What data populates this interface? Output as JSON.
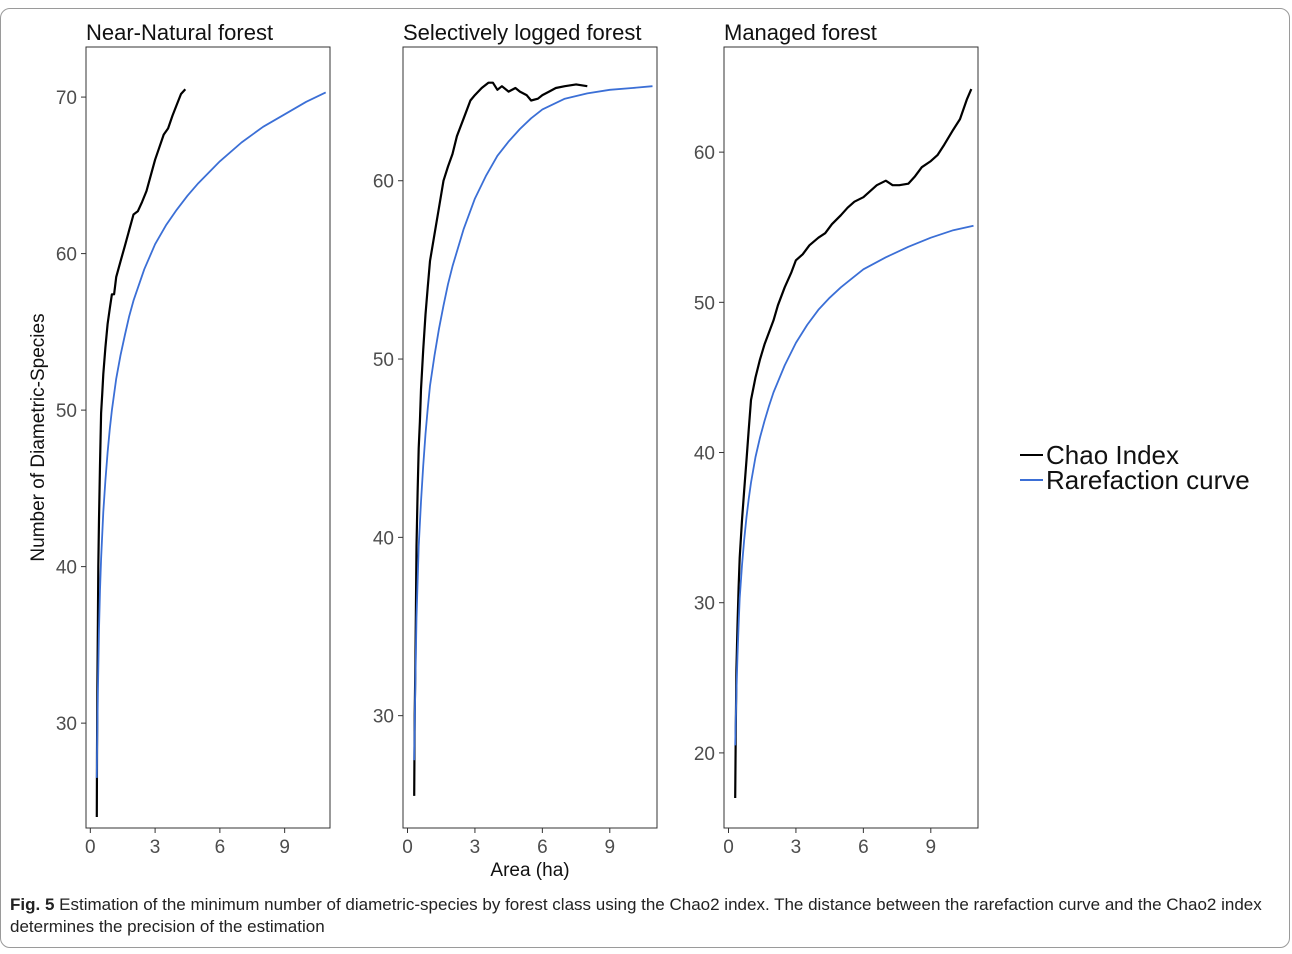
{
  "chart_data": [
    {
      "type": "line",
      "title": "Near-Natural forest",
      "xlabel": "",
      "ylabel": "Number of Diametric-Species",
      "xlim": [
        -0.2,
        11.1
      ],
      "ylim": [
        23.3,
        73.2
      ],
      "xticks": [
        0,
        3,
        6,
        9
      ],
      "yticks": [
        30,
        40,
        50,
        60,
        70
      ],
      "grid": false,
      "series": [
        {
          "name": "Chao Index",
          "color": "#000000",
          "x": [
            0.3,
            0.31,
            0.33,
            0.35,
            0.37,
            0.4,
            0.45,
            0.5,
            0.55,
            0.6,
            0.7,
            0.8,
            0.9,
            1.0,
            1.1,
            1.2,
            1.4,
            1.6,
            1.8,
            2.0,
            2.2,
            2.4,
            2.6,
            2.8,
            3.0,
            3.2,
            3.4,
            3.6,
            3.8,
            4.0,
            4.2,
            4.4
          ],
          "y": [
            24,
            28,
            32.5,
            36.5,
            40,
            43,
            46.5,
            49.8,
            51,
            52.3,
            54,
            55.5,
            56.5,
            57.4,
            57.4,
            58.5,
            59.5,
            60.5,
            61.5,
            62.5,
            62.7,
            63.3,
            64,
            65,
            66,
            66.8,
            67.6,
            68,
            68.8,
            69.5,
            70.2,
            70.5
          ]
        },
        {
          "name": "Rarefaction curve",
          "color": "#3b6fd6",
          "x": [
            0.3,
            0.32,
            0.35,
            0.4,
            0.45,
            0.5,
            0.6,
            0.7,
            0.8,
            0.9,
            1.0,
            1.2,
            1.4,
            1.6,
            1.8,
            2.0,
            2.5,
            3.0,
            3.5,
            4.0,
            4.5,
            5.0,
            6.0,
            7.0,
            8.0,
            9.0,
            10.0,
            10.9
          ],
          "y": [
            26.5,
            29,
            32,
            36,
            38.5,
            40.5,
            43.5,
            45.5,
            47.3,
            48.8,
            50,
            52,
            53.5,
            54.8,
            56,
            57,
            59,
            60.6,
            61.8,
            62.8,
            63.7,
            64.5,
            65.9,
            67.1,
            68.1,
            68.9,
            69.7,
            70.3
          ]
        }
      ]
    },
    {
      "type": "line",
      "title": "Selectively logged forest",
      "xlabel": "Area (ha)",
      "ylabel": "",
      "xlim": [
        -0.2,
        11.1
      ],
      "ylim": [
        23.7,
        67.5
      ],
      "xticks": [
        0,
        3,
        6,
        9
      ],
      "yticks": [
        30,
        40,
        50,
        60
      ],
      "grid": false,
      "series": [
        {
          "name": "Chao Index",
          "color": "#000000",
          "x": [
            0.3,
            0.32,
            0.35,
            0.38,
            0.4,
            0.45,
            0.5,
            0.55,
            0.6,
            0.7,
            0.8,
            0.9,
            1.0,
            1.2,
            1.4,
            1.6,
            1.8,
            2.0,
            2.2,
            2.5,
            2.8,
            3.0,
            3.3,
            3.6,
            3.8,
            4.0,
            4.2,
            4.5,
            4.8,
            5.0,
            5.3,
            5.5,
            5.8,
            6.0,
            6.3,
            6.6,
            7.0,
            7.5,
            8.0
          ],
          "y": [
            25.5,
            30,
            33,
            36.5,
            39.5,
            42.5,
            45,
            46.5,
            48.3,
            50.5,
            52.5,
            54,
            55.5,
            57,
            58.5,
            60,
            60.8,
            61.5,
            62.5,
            63.5,
            64.5,
            64.8,
            65.2,
            65.5,
            65.5,
            65.1,
            65.3,
            65.0,
            65.2,
            65.0,
            64.8,
            64.5,
            64.6,
            64.8,
            65.0,
            65.2,
            65.3,
            65.4,
            65.3
          ]
        },
        {
          "name": "Rarefaction curve",
          "color": "#3b6fd6",
          "x": [
            0.3,
            0.32,
            0.35,
            0.4,
            0.45,
            0.5,
            0.6,
            0.7,
            0.8,
            0.9,
            1.0,
            1.2,
            1.4,
            1.6,
            1.8,
            2.0,
            2.5,
            3.0,
            3.5,
            4.0,
            4.5,
            5.0,
            5.5,
            6.0,
            7.0,
            8.0,
            9.0,
            10.0,
            10.9
          ],
          "y": [
            27.5,
            29.5,
            32,
            35.5,
            37.5,
            39.5,
            42,
            44,
            45.8,
            47.2,
            48.5,
            50.2,
            51.7,
            53,
            54.2,
            55.2,
            57.3,
            59,
            60.3,
            61.4,
            62.2,
            62.9,
            63.5,
            64.0,
            64.6,
            64.9,
            65.1,
            65.2,
            65.3
          ]
        }
      ]
    },
    {
      "type": "line",
      "title": "Managed forest",
      "xlabel": "",
      "ylabel": "",
      "xlim": [
        -0.2,
        11.1
      ],
      "ylim": [
        15.0,
        67.0
      ],
      "xticks": [
        0,
        3,
        6,
        9
      ],
      "yticks": [
        20,
        30,
        40,
        50,
        60
      ],
      "grid": false,
      "series": [
        {
          "name": "Chao Index",
          "color": "#000000",
          "x": [
            0.3,
            0.32,
            0.35,
            0.4,
            0.45,
            0.5,
            0.6,
            0.7,
            0.8,
            0.9,
            1.0,
            1.2,
            1.4,
            1.6,
            1.8,
            2.0,
            2.2,
            2.5,
            2.8,
            3.0,
            3.3,
            3.6,
            4.0,
            4.3,
            4.6,
            5.0,
            5.3,
            5.6,
            6.0,
            6.3,
            6.6,
            7.0,
            7.3,
            7.6,
            8.0,
            8.3,
            8.6,
            9.0,
            9.3,
            9.6,
            10.0,
            10.3,
            10.6,
            10.8
          ],
          "y": [
            17,
            21,
            25.5,
            28.5,
            31,
            33,
            35.5,
            37.5,
            39.5,
            41.5,
            43.5,
            45,
            46.2,
            47.2,
            48,
            48.8,
            49.8,
            51,
            52,
            52.8,
            53.2,
            53.8,
            54.3,
            54.6,
            55.2,
            55.8,
            56.3,
            56.7,
            57.0,
            57.4,
            57.8,
            58.1,
            57.8,
            57.8,
            57.9,
            58.4,
            59.0,
            59.4,
            59.8,
            60.5,
            61.5,
            62.2,
            63.5,
            64.2
          ]
        },
        {
          "name": "Rarefaction curve",
          "color": "#3b6fd6",
          "x": [
            0.3,
            0.32,
            0.35,
            0.4,
            0.45,
            0.5,
            0.6,
            0.7,
            0.8,
            0.9,
            1.0,
            1.2,
            1.4,
            1.6,
            1.8,
            2.0,
            2.5,
            3.0,
            3.5,
            4.0,
            4.5,
            5.0,
            5.5,
            6.0,
            7.0,
            8.0,
            9.0,
            10.0,
            10.9
          ],
          "y": [
            20.5,
            22,
            24,
            26.5,
            28.5,
            30.3,
            32.5,
            34.2,
            35.7,
            36.9,
            38,
            39.7,
            41.0,
            42.1,
            43.1,
            44,
            45.8,
            47.3,
            48.5,
            49.5,
            50.3,
            51.0,
            51.6,
            52.2,
            53.0,
            53.7,
            54.3,
            54.8,
            55.1
          ]
        }
      ]
    }
  ],
  "legend": {
    "placement": "right",
    "entries": [
      {
        "label": "Chao Index",
        "color": "#000000"
      },
      {
        "label": "Rarefaction curve",
        "color": "#3b6fd6"
      }
    ]
  },
  "caption": {
    "label": "Fig. 5",
    "text": " Estimation of the minimum number of diametric-species by forest class using the Chao2 index. The distance between the rarefaction curve and the Chao2 index determines the precision of the estimation"
  }
}
